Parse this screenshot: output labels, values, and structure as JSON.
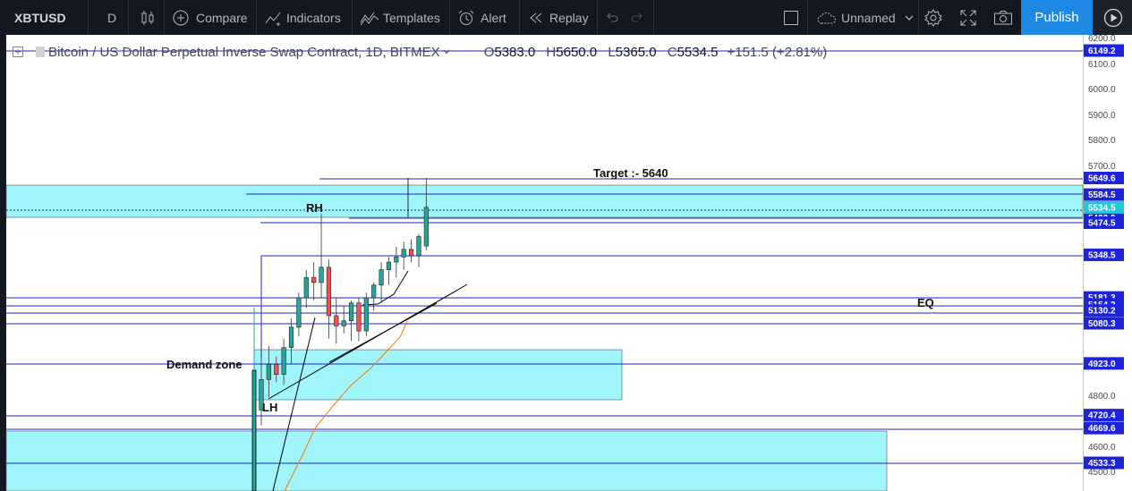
{
  "toolbar": {
    "symbol": "XBTUSD",
    "interval": "D",
    "compare_label": "Compare",
    "indicators_label": "Indicators",
    "templates_label": "Templates",
    "alert_label": "Alert",
    "replay_label": "Replay",
    "layout_name": "Unnamed",
    "publish_label": "Publish"
  },
  "legend": {
    "title": "Bitcoin / US Dollar Perpetual Inverse Swap Contract, 1D, BITMEX",
    "open_key": "O",
    "open": "5383.0",
    "high_key": "H",
    "high": "5650.0",
    "low_key": "L",
    "low": "5365.0",
    "close_key": "C",
    "close": "5534.5",
    "change": "+151.5 (+2.81%)"
  },
  "colors": {
    "toolbar_bg": "#131722",
    "publish": "#1e88e5",
    "zone_fill": "#9ff5fb",
    "badge_blue": "#1d23d8",
    "badge_current": "#26c6da",
    "candle_up": "#26a69a",
    "candle_down": "#ef5350",
    "ma_line": "#f57c00"
  },
  "annotations": {
    "target": "Target :- 5640",
    "rh": "RH",
    "eq": "EQ",
    "demand": "Demand zone",
    "lh": "LH"
  },
  "price_axis": {
    "ticks": [
      "6200.0",
      "6100.0",
      "6000.0",
      "5900.0",
      "5800.0",
      "5700.0",
      "4800.0",
      "4600.0",
      "4500.0"
    ],
    "badges": [
      "6149.2",
      "5649.6",
      "5584.5",
      "5525.7",
      "5493.9",
      "5474.5",
      "5348.5",
      "5181.3",
      "5154.2",
      "5130.2",
      "5080.3",
      "4923.0",
      "4720.4",
      "4669.6",
      "4533.3"
    ],
    "current_badge": "5534.5",
    "range": [
      4400,
      6200
    ]
  },
  "chart_data": {
    "type": "candlestick",
    "ohlc": [
      {
        "o": 4740,
        "h": 5000,
        "l": 4680,
        "c": 4860
      },
      {
        "o": 4860,
        "h": 4990,
        "l": 4790,
        "c": 4920
      },
      {
        "o": 4920,
        "h": 4950,
        "l": 4850,
        "c": 4880
      },
      {
        "o": 4880,
        "h": 5020,
        "l": 4840,
        "c": 4985
      },
      {
        "o": 4985,
        "h": 5100,
        "l": 4920,
        "c": 5065
      },
      {
        "o": 5065,
        "h": 5200,
        "l": 5030,
        "c": 5180
      },
      {
        "o": 5180,
        "h": 5290,
        "l": 5140,
        "c": 5260
      },
      {
        "o": 5260,
        "h": 5320,
        "l": 5170,
        "c": 5240
      },
      {
        "o": 5240,
        "h": 5510,
        "l": 5180,
        "c": 5300
      },
      {
        "o": 5300,
        "h": 5330,
        "l": 5020,
        "c": 5110
      },
      {
        "o": 5110,
        "h": 5180,
        "l": 5000,
        "c": 5070
      },
      {
        "o": 5070,
        "h": 5150,
        "l": 5040,
        "c": 5090
      },
      {
        "o": 5090,
        "h": 5170,
        "l": 5010,
        "c": 5160
      },
      {
        "o": 5160,
        "h": 5180,
        "l": 5010,
        "c": 5050
      },
      {
        "o": 5050,
        "h": 5200,
        "l": 5030,
        "c": 5180
      },
      {
        "o": 5180,
        "h": 5240,
        "l": 5130,
        "c": 5230
      },
      {
        "o": 5230,
        "h": 5320,
        "l": 5160,
        "c": 5290
      },
      {
        "o": 5290,
        "h": 5340,
        "l": 5230,
        "c": 5320
      },
      {
        "o": 5320,
        "h": 5380,
        "l": 5260,
        "c": 5340
      },
      {
        "o": 5340,
        "h": 5400,
        "l": 5290,
        "c": 5370
      },
      {
        "o": 5370,
        "h": 5410,
        "l": 5320,
        "c": 5345
      },
      {
        "o": 5345,
        "h": 5430,
        "l": 5300,
        "c": 5420
      },
      {
        "o": 5383,
        "h": 5650,
        "l": 5365,
        "c": 5534.5
      }
    ]
  }
}
